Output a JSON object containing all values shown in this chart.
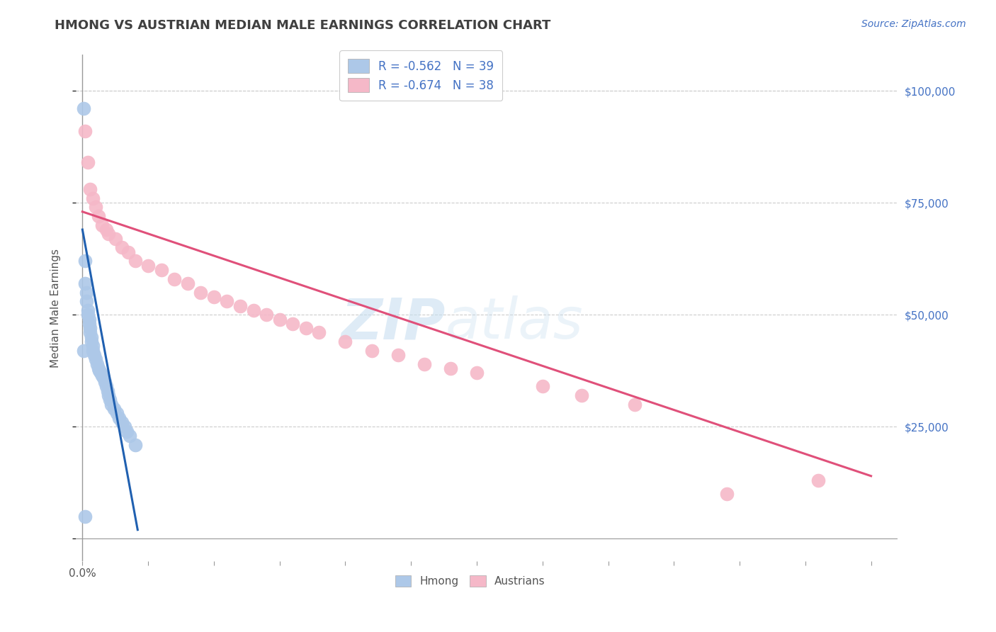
{
  "title": "HMONG VS AUSTRIAN MEDIAN MALE EARNINGS CORRELATION CHART",
  "source": "Source: ZipAtlas.com",
  "ylabel": "Median Male Earnings",
  "xlim": [
    -0.005,
    0.62
  ],
  "ylim": [
    -5000,
    108000
  ],
  "xticks": [
    0.0,
    0.05,
    0.1,
    0.15,
    0.2,
    0.25,
    0.3,
    0.35,
    0.4,
    0.45,
    0.5,
    0.55,
    0.6
  ],
  "xticklabels_show": {
    "0.0": "0.0%"
  },
  "yticks": [
    0,
    25000,
    50000,
    75000,
    100000
  ],
  "yticklabels": [
    "",
    "$25,000",
    "$50,000",
    "$75,000",
    "$100,000"
  ],
  "grid_color": "#cccccc",
  "background_color": "#ffffff",
  "watermark_zip": "ZIP",
  "watermark_atlas": "atlas",
  "legend_R1": "R = -0.562",
  "legend_N1": "N = 39",
  "legend_R2": "R = -0.674",
  "legend_N2": "N = 38",
  "hmong_color": "#adc8e8",
  "austrian_color": "#f5b8c8",
  "hmong_line_color": "#2060b0",
  "austrian_line_color": "#e0507a",
  "hmong_scatter_x": [
    0.001,
    0.002,
    0.002,
    0.003,
    0.003,
    0.004,
    0.004,
    0.005,
    0.005,
    0.006,
    0.006,
    0.007,
    0.007,
    0.008,
    0.008,
    0.009,
    0.01,
    0.011,
    0.012,
    0.013,
    0.014,
    0.015,
    0.016,
    0.017,
    0.018,
    0.019,
    0.02,
    0.021,
    0.022,
    0.024,
    0.026,
    0.028,
    0.03,
    0.032,
    0.034,
    0.036,
    0.04,
    0.001,
    0.002
  ],
  "hmong_scatter_y": [
    96000,
    62000,
    57000,
    55000,
    53000,
    51000,
    50000,
    49000,
    48000,
    47000,
    46000,
    45000,
    44000,
    43000,
    42000,
    41000,
    40000,
    39000,
    38000,
    37500,
    37000,
    36500,
    36000,
    35000,
    34000,
    33000,
    32000,
    31000,
    30000,
    29000,
    28000,
    27000,
    26000,
    25000,
    24000,
    23000,
    21000,
    42000,
    5000
  ],
  "austrian_scatter_x": [
    0.002,
    0.004,
    0.006,
    0.008,
    0.01,
    0.012,
    0.015,
    0.018,
    0.02,
    0.025,
    0.03,
    0.035,
    0.04,
    0.05,
    0.06,
    0.07,
    0.08,
    0.09,
    0.1,
    0.11,
    0.12,
    0.13,
    0.14,
    0.15,
    0.16,
    0.17,
    0.18,
    0.2,
    0.22,
    0.24,
    0.26,
    0.28,
    0.3,
    0.35,
    0.38,
    0.42,
    0.49,
    0.56
  ],
  "austrian_scatter_y": [
    91000,
    84000,
    78000,
    76000,
    74000,
    72000,
    70000,
    69000,
    68000,
    67000,
    65000,
    64000,
    62000,
    61000,
    60000,
    58000,
    57000,
    55000,
    54000,
    53000,
    52000,
    51000,
    50000,
    49000,
    48000,
    47000,
    46000,
    44000,
    42000,
    41000,
    39000,
    38000,
    37000,
    34000,
    32000,
    30000,
    10000,
    13000
  ],
  "hmong_trendline_x": [
    0.0,
    0.042
  ],
  "hmong_trendline_y": [
    69000,
    2000
  ],
  "austrian_trendline_x": [
    0.0,
    0.6
  ],
  "austrian_trendline_y": [
    73000,
    14000
  ],
  "title_color": "#404040",
  "source_color": "#4472c4",
  "axis_color": "#999999",
  "tick_color_right": "#4472c4",
  "tick_color_x": "#555555"
}
